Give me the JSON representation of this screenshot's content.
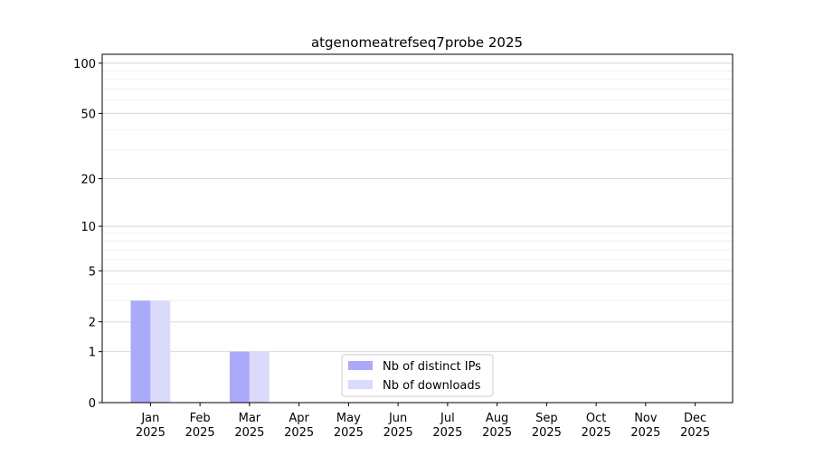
{
  "chart_data": {
    "type": "bar",
    "title": "atgenomeatrefseq7probe 2025",
    "categories": [
      "Jan 2025",
      "Feb 2025",
      "Mar 2025",
      "Apr 2025",
      "May 2025",
      "Jun 2025",
      "Jul 2025",
      "Aug 2025",
      "Sep 2025",
      "Oct 2025",
      "Nov 2025",
      "Dec 2025"
    ],
    "series": [
      {
        "name": "Nb of distinct IPs",
        "color": "#aaaaf8",
        "values": [
          3,
          0,
          1,
          0,
          0,
          0,
          0,
          0,
          0,
          0,
          0,
          0
        ]
      },
      {
        "name": "Nb of downloads",
        "color": "#dadafa",
        "values": [
          3,
          0,
          1,
          0,
          0,
          0,
          0,
          0,
          0,
          0,
          0,
          0
        ]
      }
    ],
    "yscale": "log1p",
    "ylim": [
      0,
      113
    ],
    "yticks": [
      0,
      1,
      2,
      5,
      10,
      20,
      50,
      100
    ],
    "minor_yticks": [
      3,
      4,
      6,
      7,
      8,
      9,
      30,
      40,
      60,
      70,
      80,
      90
    ],
    "grid": true,
    "legend": "lower center"
  }
}
